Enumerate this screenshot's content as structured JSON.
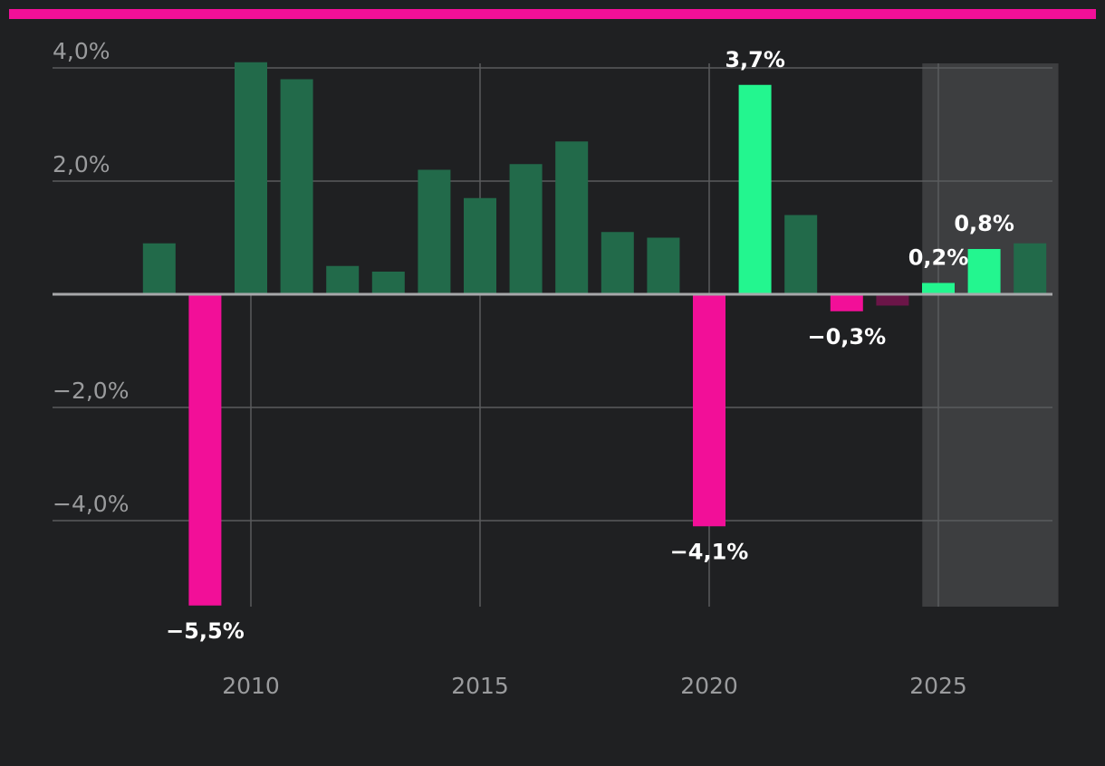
{
  "chart_data": {
    "type": "bar",
    "x": [
      2008,
      2009,
      2010,
      2011,
      2012,
      2013,
      2014,
      2015,
      2016,
      2017,
      2018,
      2019,
      2020,
      2021,
      2022,
      2023,
      2024,
      2025,
      2026,
      2027
    ],
    "values": [
      0.9,
      -5.5,
      4.1,
      3.8,
      0.5,
      0.4,
      2.2,
      1.7,
      2.3,
      2.7,
      1.1,
      1.0,
      -4.1,
      3.7,
      1.4,
      -0.3,
      -0.2,
      0.2,
      0.8,
      0.9
    ],
    "bar_kind": [
      "normal",
      "negative",
      "normal",
      "normal",
      "normal",
      "normal",
      "normal",
      "normal",
      "normal",
      "normal",
      "normal",
      "normal",
      "negative",
      "highlight",
      "normal",
      "negative",
      "negative-faded",
      "highlight",
      "highlight",
      "normal"
    ],
    "data_labels": [
      {
        "year": 2009,
        "text": "−5,5%"
      },
      {
        "year": 2020,
        "text": "−4,1%"
      },
      {
        "year": 2021,
        "text": "3,7%"
      },
      {
        "year": 2023,
        "text": "−0,3%"
      },
      {
        "year": 2025,
        "text": "0,2%"
      },
      {
        "year": 2026,
        "text": "0,8%"
      }
    ],
    "y_ticks": [
      {
        "value": 4,
        "label": "4,0%"
      },
      {
        "value": 2,
        "label": "2,0%"
      },
      {
        "value": -2,
        "label": "−2,0%"
      },
      {
        "value": -4,
        "label": "−4,0%"
      }
    ],
    "x_ticks": [
      {
        "value": 2010,
        "label": "2010"
      },
      {
        "value": 2015,
        "label": "2015"
      },
      {
        "value": 2020,
        "label": "2020"
      },
      {
        "value": 2025,
        "label": "2025"
      }
    ],
    "ylim": [
      -5.5,
      4.1
    ],
    "xlim": [
      2006.7,
      2027.6
    ],
    "forecast_shade": {
      "from": 2024.65,
      "to": 2027.6
    },
    "grid": true,
    "colors": {
      "normal": "#226a4a",
      "highlight": "#23f68f",
      "negative": "#f20f98",
      "negative-faded": "#6b1548",
      "background": "#1f2022",
      "accent_rule": "#f20f98",
      "grid": "#5a5b5d",
      "zero_line": "#a7a8aa",
      "forecast_shade": "#3d3e40"
    }
  }
}
